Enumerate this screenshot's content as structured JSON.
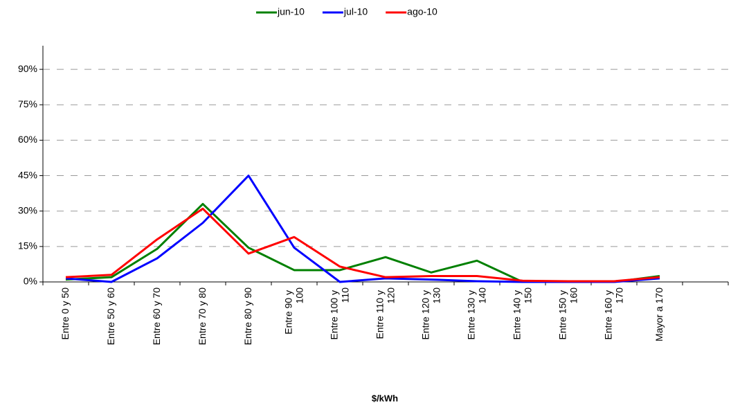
{
  "chart_data": {
    "type": "line",
    "x_label": "$/kWh",
    "categories": [
      "Entre 0 y 50",
      "Entre 50 y 60",
      "Entre 60 y 70",
      "Entre 70 y 80",
      "Entre 80 y 90",
      "Entre 90 y 100",
      "Entre 100 y 110",
      "Entre 110 y 120",
      "Entre 120 y 130",
      "Entre 130 y 140",
      "Entre 140 y 150",
      "Entre 150 y 160",
      "Entre 160 y 170",
      "Mayor a 170",
      null
    ],
    "series": [
      {
        "name": "jun-10",
        "color": "#008000",
        "values": [
          1,
          2,
          14,
          33,
          14.5,
          5,
          5,
          10.5,
          4,
          9,
          0,
          0,
          0,
          2.5,
          null
        ]
      },
      {
        "name": "jul-10",
        "color": "#0000ff",
        "values": [
          1.5,
          0,
          10,
          25,
          45,
          14.5,
          0,
          1.5,
          1,
          0.3,
          0,
          0,
          0,
          1.5,
          null
        ]
      },
      {
        "name": "ago-10",
        "color": "#ff0000",
        "values": [
          2,
          3,
          18,
          31,
          12,
          19,
          6.5,
          2,
          2.5,
          2.5,
          0.5,
          0.3,
          0.3,
          2,
          null
        ]
      }
    ],
    "ylim": [
      0,
      100
    ],
    "yticks": [
      {
        "value": 0,
        "label": "0%"
      },
      {
        "value": 15,
        "label": "15%"
      },
      {
        "value": 30,
        "label": "30%"
      },
      {
        "value": 45,
        "label": "45%"
      },
      {
        "value": 60,
        "label": "60%"
      },
      {
        "value": 75,
        "label": "75%"
      },
      {
        "value": 90,
        "label": "90%"
      }
    ],
    "grid": true,
    "legend": "top"
  }
}
